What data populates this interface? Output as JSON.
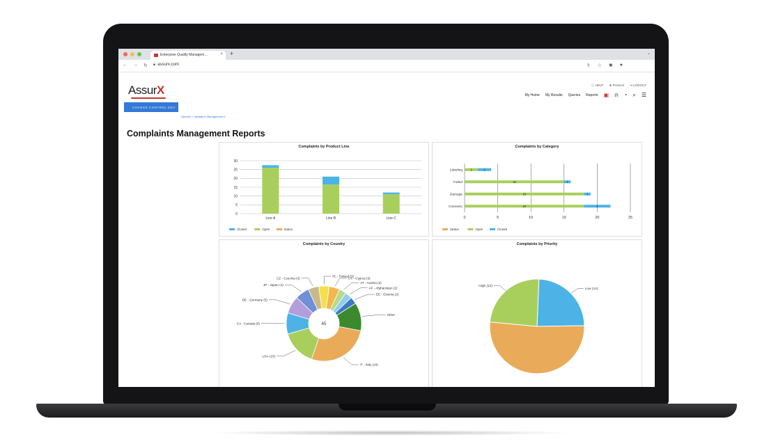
{
  "browser": {
    "tab_title": "Enterprise Quality Managem…",
    "url": "assurx.com",
    "traffic_colors": [
      "#ed6a5e",
      "#f5bf4f",
      "#61c554"
    ]
  },
  "app": {
    "logo": {
      "main": "Assur",
      "accent": "X"
    },
    "util_links": [
      "HELP",
      "Protocol",
      "LOGOUT"
    ],
    "nav": [
      "My Home",
      "My Results",
      "Queries",
      "Reports"
    ],
    "banner": "CHANGE CONTROL DEV",
    "breadcrumb": "Queries » Validation Management II",
    "page_title": "Complaints Management Reports"
  },
  "colors": {
    "closed": "#4db3e6",
    "open": "#a8cf5c",
    "status": "#e9ab5a",
    "accent": "#c0392b",
    "banner": "#3479d6"
  },
  "chart_data": [
    {
      "type": "bar",
      "title": "Complaints by Product Line",
      "categories": [
        "Line A",
        "Line B",
        "Line C"
      ],
      "series": [
        {
          "name": "Closed",
          "values": [
            1.5,
            4.5,
            1
          ]
        },
        {
          "name": "Open",
          "values": [
            26,
            16.5,
            11
          ]
        },
        {
          "name": "status",
          "values": [
            0,
            0,
            0
          ]
        }
      ],
      "stacked": true,
      "ylim": [
        0,
        30
      ],
      "yticks": [
        0,
        5,
        10,
        15,
        20,
        25,
        30
      ],
      "grid": true,
      "legend": "bottom"
    },
    {
      "type": "bar",
      "orientation": "horizontal",
      "title": "Complaints by Category",
      "categories": [
        "Labeling",
        "Failed",
        "Damage",
        "Cosmetic"
      ],
      "series": [
        {
          "name": "Status",
          "values": [
            0,
            0,
            0,
            0
          ]
        },
        {
          "name": "Open",
          "values": [
            2,
            15,
            18,
            18
          ]
        },
        {
          "name": "Closed",
          "values": [
            2,
            1,
            1,
            4
          ]
        }
      ],
      "data_labels": [
        [
          "2",
          "2"
        ],
        [
          "15",
          "1"
        ],
        [
          "18",
          "1"
        ],
        [
          "18",
          "4"
        ]
      ],
      "stacked": true,
      "xlim": [
        0,
        25
      ],
      "xticks": [
        0,
        5,
        10,
        15,
        20,
        25
      ],
      "grid": true,
      "legend": "bottom"
    },
    {
      "type": "pie",
      "donut": true,
      "title": "Complaints by Country",
      "center_label": "65",
      "slices": [
        {
          "label": "PL - Poland (3)",
          "value": 3,
          "color": "#f4e04d"
        },
        {
          "label": "CY - Cyprus (3)",
          "value": 3,
          "color": "#f2b84f"
        },
        {
          "label": "AT - Austria (2)",
          "value": 2,
          "color": "#b8d98a"
        },
        {
          "label": "AF - Afghanistan (2)",
          "value": 2,
          "color": "#8fd0e8"
        },
        {
          "label": "EE - Estonia (2)",
          "value": 2,
          "color": "#3f79c5"
        },
        {
          "label": "Other",
          "value": 8,
          "color": "#3b8a2d"
        },
        {
          "label": "IT - Italy (18)",
          "value": 18,
          "color": "#e9ab5a"
        },
        {
          "label": "USA (10)",
          "value": 10,
          "color": "#a8cf5c"
        },
        {
          "label": "CA - Canada (6)",
          "value": 6,
          "color": "#4db3e6"
        },
        {
          "label": "DE - Germany (5)",
          "value": 5,
          "color": "#b39ddb"
        },
        {
          "label": "JP - Japan (4)",
          "value": 4,
          "color": "#6f8fd6"
        },
        {
          "label": "CZ - Czechia (3)",
          "value": 3,
          "color": "#c9b98a"
        }
      ]
    },
    {
      "type": "pie",
      "title": "Complaints by Priority",
      "slices": [
        {
          "label": "Low (14)",
          "value": 14,
          "color": "#4db3e6"
        },
        {
          "label": "",
          "value": 30,
          "color": "#e9ab5a"
        },
        {
          "label": "High (14)",
          "value": 14,
          "color": "#a8cf5c"
        }
      ]
    }
  ]
}
